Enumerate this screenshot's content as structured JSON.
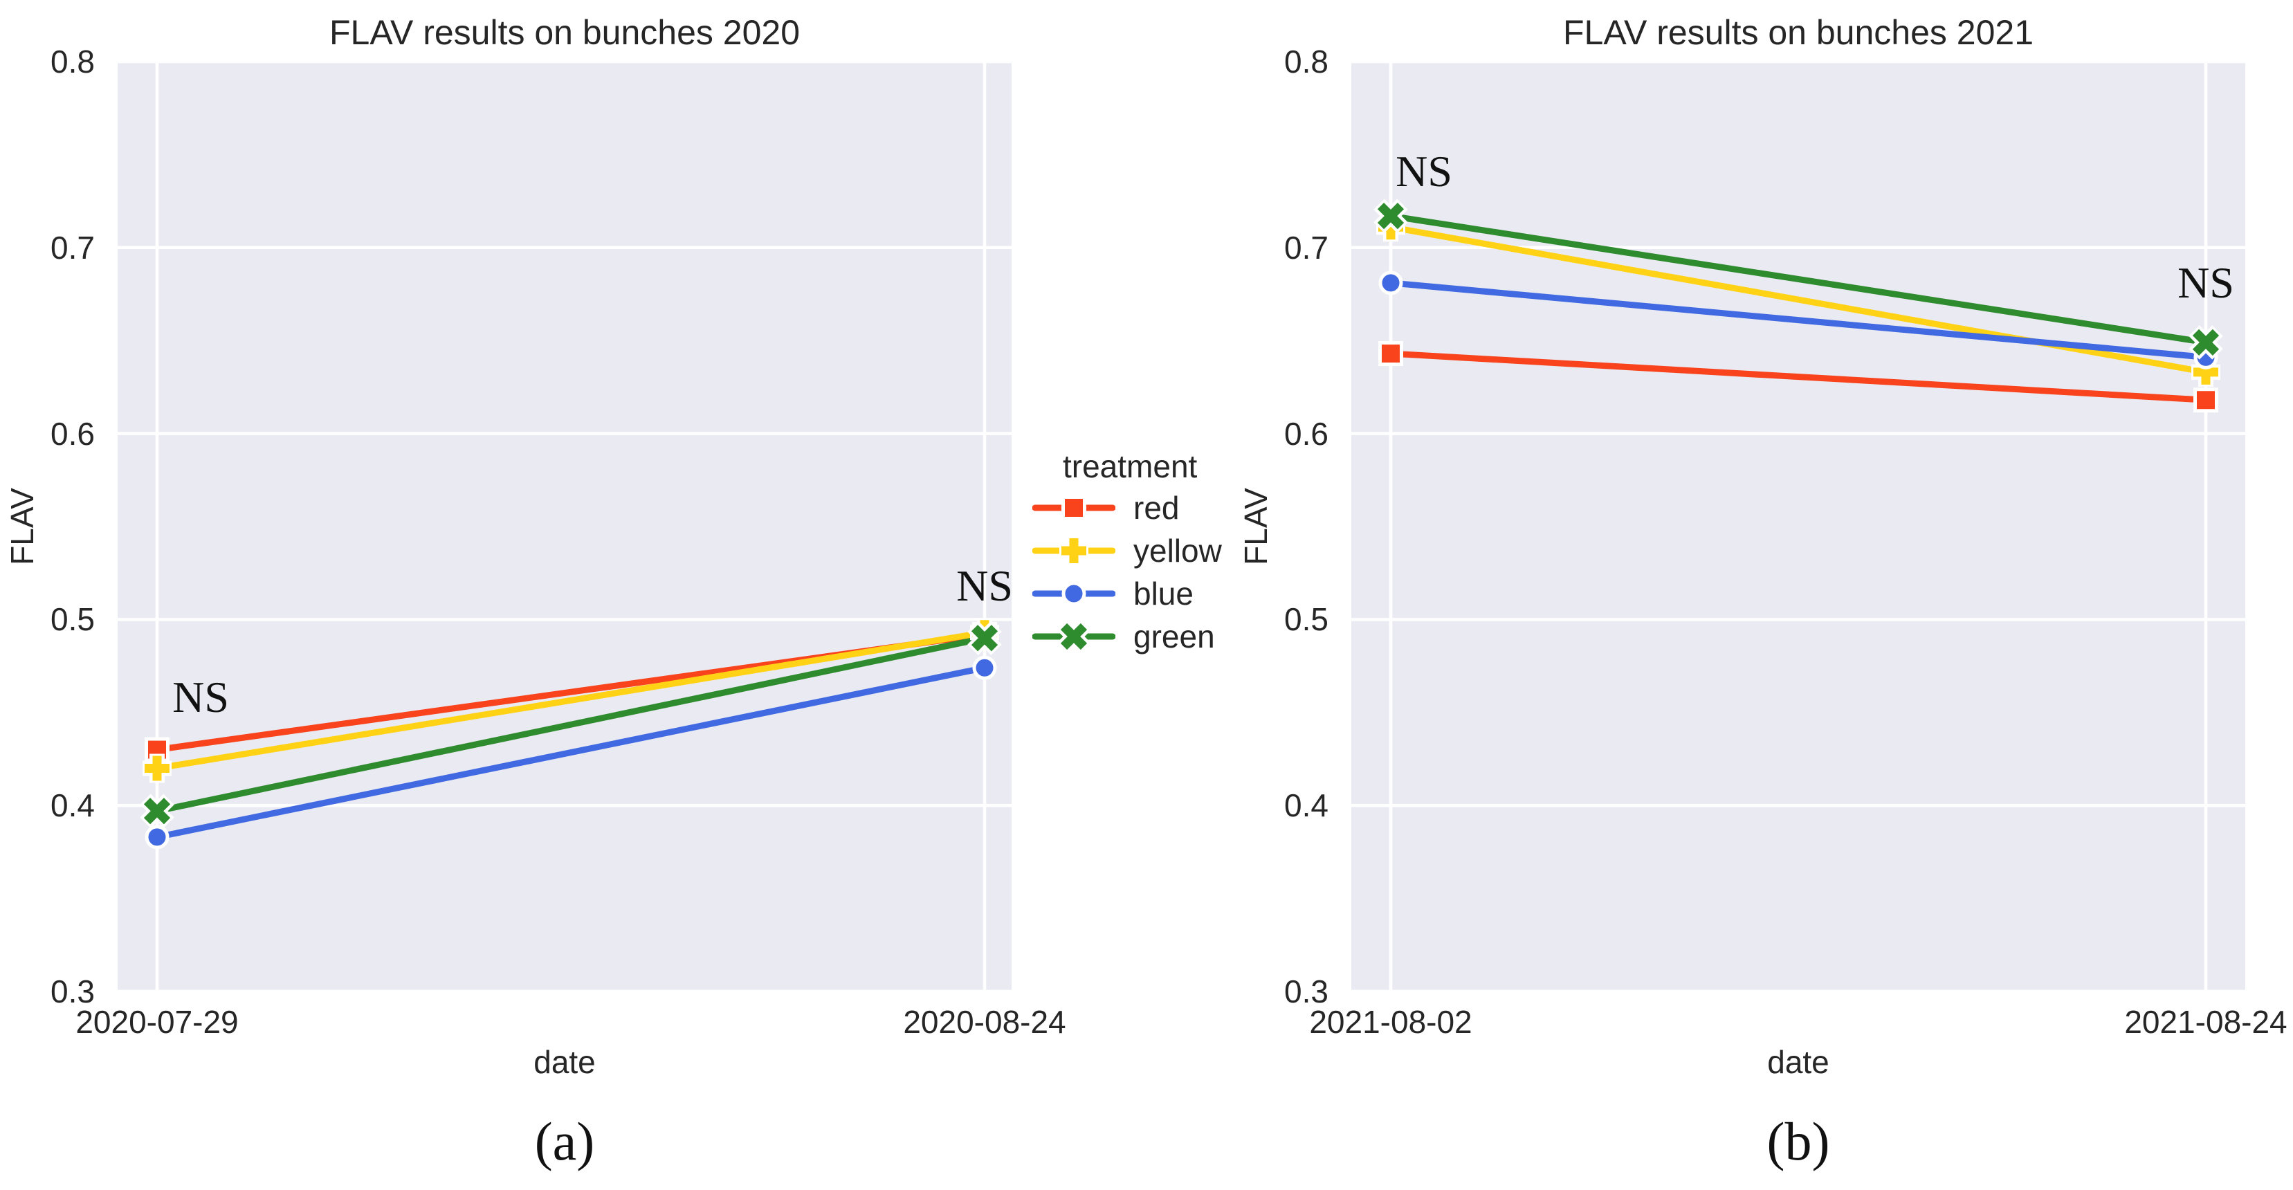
{
  "figure": {
    "background": "#ffffff"
  },
  "palette": {
    "red": "#f8431d",
    "yellow": "#ffd215",
    "blue": "#4169e1",
    "green": "#2e8b2e",
    "plot_bg": "#eaeaf2",
    "grid": "#ffffff",
    "marker_edge": "#ffffff",
    "text": "#262626"
  },
  "legend": {
    "title": "treatment",
    "position": "center-between-subplots",
    "entries": [
      {
        "label": "red",
        "color_key": "red",
        "marker": "square"
      },
      {
        "label": "yellow",
        "color_key": "yellow",
        "marker": "plus"
      },
      {
        "label": "blue",
        "color_key": "blue",
        "marker": "circle"
      },
      {
        "label": "green",
        "color_key": "green",
        "marker": "x"
      }
    ]
  },
  "chart_data": [
    {
      "type": "line",
      "title": "FLAV results on bunches 2020",
      "xlabel": "date",
      "ylabel": "FLAV",
      "caption": "(a)",
      "categories": [
        "2020-07-29",
        "2020-08-24"
      ],
      "ylim": [
        0.3,
        0.8
      ],
      "yticks": [
        0.8,
        0.7,
        0.6,
        0.5,
        0.4,
        0.3
      ],
      "grid": true,
      "series": [
        {
          "name": "red",
          "marker": "square",
          "values": [
            0.43,
            0.492
          ]
        },
        {
          "name": "yellow",
          "marker": "plus",
          "values": [
            0.42,
            0.493
          ]
        },
        {
          "name": "blue",
          "marker": "circle",
          "values": [
            0.383,
            0.474
          ]
        },
        {
          "name": "green",
          "marker": "x",
          "values": [
            0.397,
            0.49
          ]
        }
      ],
      "annotations": [
        {
          "text": "NS",
          "x_index": 0,
          "value": 0.458,
          "dx": 63
        },
        {
          "text": "NS",
          "x_index": 1,
          "value": 0.518,
          "dx": 0
        }
      ]
    },
    {
      "type": "line",
      "title": "FLAV results on bunches 2021",
      "xlabel": "date",
      "ylabel": "FLAV",
      "caption": "(b)",
      "categories": [
        "2021-08-02",
        "2021-08-24"
      ],
      "ylim": [
        0.3,
        0.8
      ],
      "yticks": [
        0.8,
        0.7,
        0.6,
        0.5,
        0.4,
        0.3
      ],
      "grid": true,
      "series": [
        {
          "name": "red",
          "marker": "square",
          "values": [
            0.643,
            0.618
          ]
        },
        {
          "name": "yellow",
          "marker": "plus",
          "values": [
            0.711,
            0.633
          ]
        },
        {
          "name": "blue",
          "marker": "circle",
          "values": [
            0.681,
            0.641
          ]
        },
        {
          "name": "green",
          "marker": "x",
          "values": [
            0.717,
            0.649
          ]
        }
      ],
      "annotations": [
        {
          "text": "NS",
          "x_index": 0,
          "value": 0.741,
          "dx": 48
        },
        {
          "text": "NS",
          "x_index": 1,
          "value": 0.681,
          "dx": 0
        }
      ]
    }
  ]
}
